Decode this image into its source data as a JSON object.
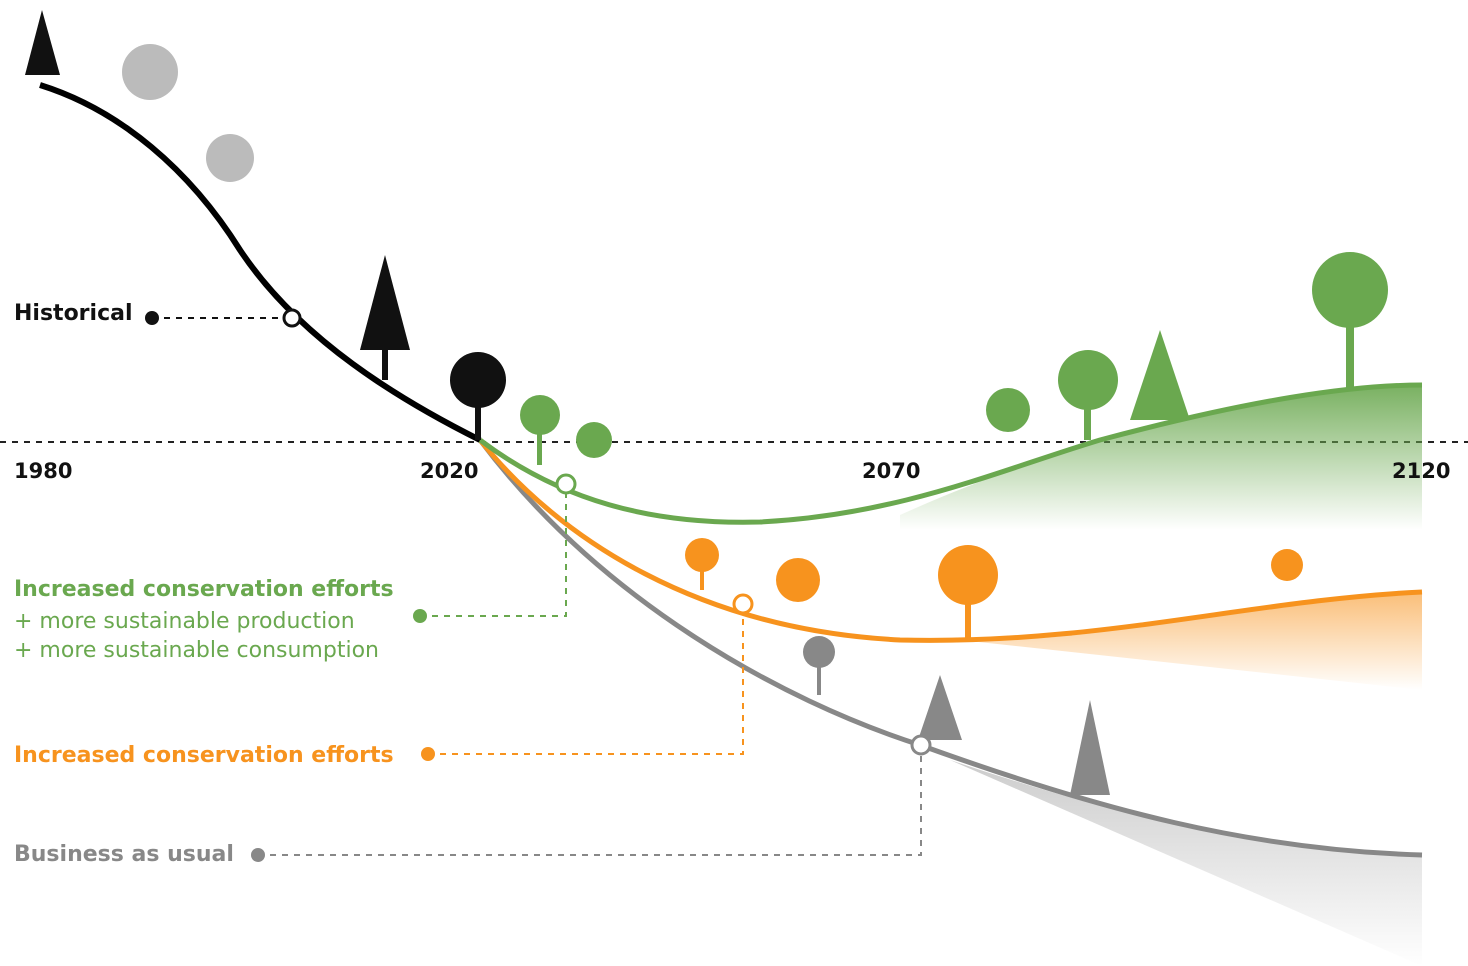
{
  "timeline": {
    "years": [
      "1980",
      "2020",
      "2070",
      "2120"
    ]
  },
  "scenarios": [
    {
      "label": "Historical"
    },
    {
      "label": "Increased conservation efforts",
      "lines": [
        "+ more sustainable production",
        "+ more sustainable consumption"
      ]
    },
    {
      "label": "Increased conservation efforts"
    },
    {
      "label": "Business as usual"
    }
  ]
}
